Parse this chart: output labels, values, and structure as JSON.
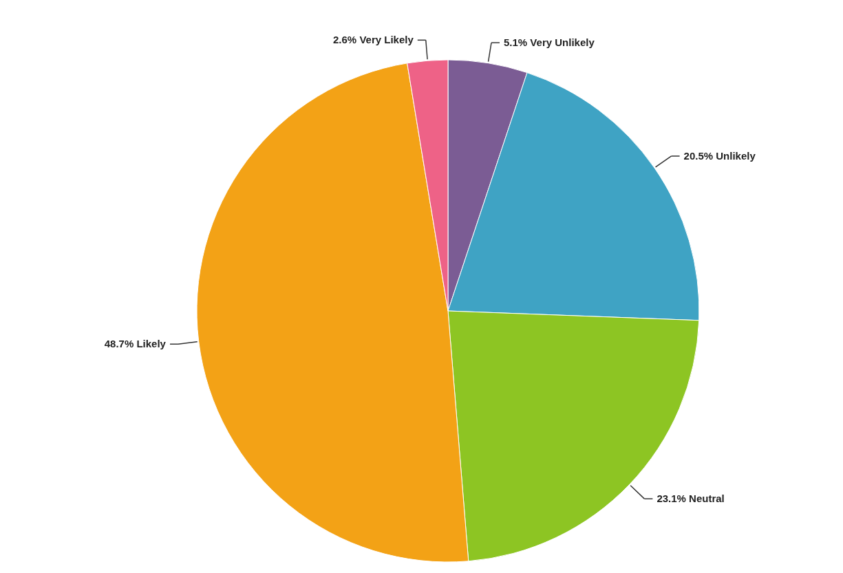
{
  "chart_data": {
    "type": "pie",
    "categories": [
      "Very Unlikely",
      "Unlikely",
      "Neutral",
      "Likely",
      "Very Likely"
    ],
    "values": [
      5.1,
      20.5,
      23.1,
      48.7,
      2.6
    ],
    "value_labels": [
      "5.1%",
      "20.5%",
      "23.1%",
      "48.7%",
      "2.6%"
    ],
    "colors": [
      "#7b5c94",
      "#3fa3c4",
      "#8dc523",
      "#f3a216",
      "#ee6287"
    ]
  }
}
